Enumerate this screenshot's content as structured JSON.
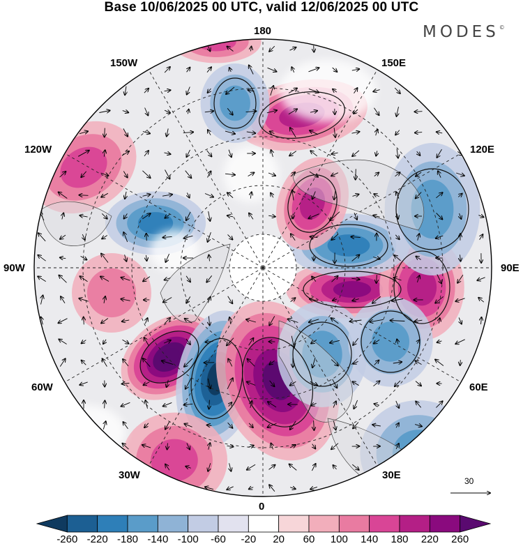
{
  "title": "Base 10/06/2025 00 UTC, valid 12/06/2025 00 UTC",
  "brand": {
    "name": "MODES",
    "mark": "©"
  },
  "longitude_labels": {
    "top": "180",
    "bottom": "0",
    "left": "90W",
    "right": "90E",
    "upper_left_1": "150W",
    "upper_left_2": "120W",
    "upper_right_1": "150E",
    "upper_right_2": "120E",
    "lower_left_1": "60W",
    "lower_left_2": "30W",
    "lower_right_1": "60E",
    "lower_right_2": "30E"
  },
  "reference_vector": {
    "label": "30"
  },
  "colorbar": {
    "ticks": [
      "-260",
      "-220",
      "-180",
      "-140",
      "-100",
      "-60",
      "-20",
      "20",
      "60",
      "100",
      "140",
      "180",
      "220",
      "260"
    ],
    "colors": [
      "#0f3a5f",
      "#1c5f93",
      "#2e7fb8",
      "#5a9cc9",
      "#8fb3d6",
      "#c2cce4",
      "#e2e2ef",
      "#ffffff",
      "#f7d6d9",
      "#f2aebb",
      "#e97ba1",
      "#d94596",
      "#b41f86",
      "#8a0a7e",
      "#5a0a70"
    ]
  },
  "anomaly_centers": [
    {
      "sign": "positive",
      "strength": 260
    },
    {
      "sign": "negative",
      "strength": 240
    },
    {
      "sign": "positive",
      "strength": 220
    },
    {
      "sign": "positive",
      "strength": 180
    },
    {
      "sign": "positive",
      "strength": 160
    },
    {
      "sign": "negative",
      "strength": 160
    },
    {
      "sign": "positive",
      "strength": 140
    },
    {
      "sign": "positive",
      "strength": 140
    },
    {
      "sign": "negative",
      "strength": 140
    },
    {
      "sign": "negative",
      "strength": 100
    },
    {
      "sign": "negative",
      "strength": 100
    },
    {
      "sign": "positive",
      "strength": 100
    },
    {
      "sign": "positive",
      "strength": 100
    },
    {
      "sign": "negative",
      "strength": 100
    },
    {
      "sign": "positive",
      "strength": 100
    },
    {
      "sign": "negative",
      "strength": 100
    },
    {
      "sign": "negative",
      "strength": 100
    },
    {
      "sign": "positive",
      "strength": 60
    }
  ]
}
